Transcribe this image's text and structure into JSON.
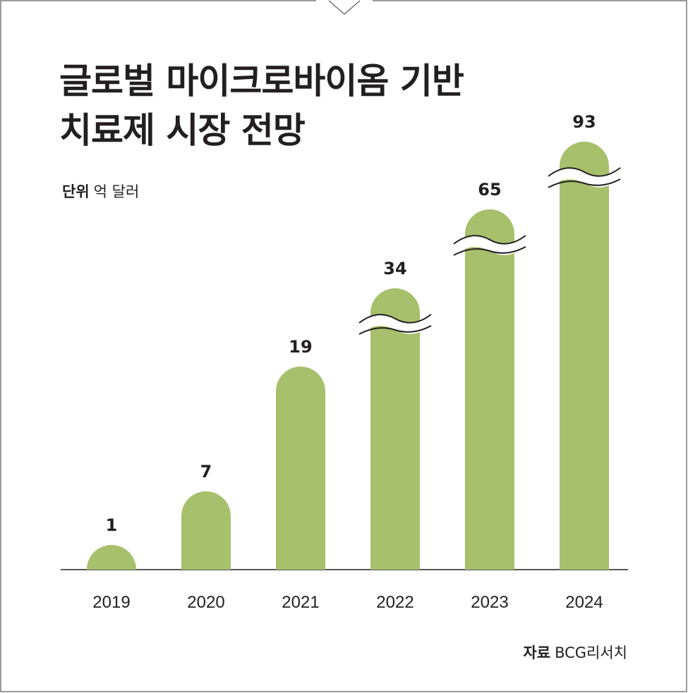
{
  "title": {
    "line1": "글로벌 마이크로바이옴 기반",
    "line2": "치료제 시장 전망"
  },
  "unit": {
    "label": "단위",
    "value": "억 달러"
  },
  "source": {
    "label": "자료",
    "value": "BCG리서치"
  },
  "colors": {
    "bar": "#a6c06c",
    "text": "#231f20",
    "frame": "#7a7a7a"
  },
  "chart_data": {
    "type": "bar",
    "categories": [
      "2019",
      "2020",
      "2021",
      "2022",
      "2023",
      "2024"
    ],
    "values": [
      1,
      7,
      19,
      34,
      65,
      93
    ],
    "value_labels": [
      "1",
      "7",
      "19",
      "34",
      "65",
      "93"
    ],
    "axis_break": [
      false,
      false,
      false,
      true,
      true,
      true
    ],
    "title": "글로벌 마이크로바이옴 기반 치료제 시장 전망",
    "ylabel": "억 달러",
    "grid": false,
    "legend": "none"
  }
}
